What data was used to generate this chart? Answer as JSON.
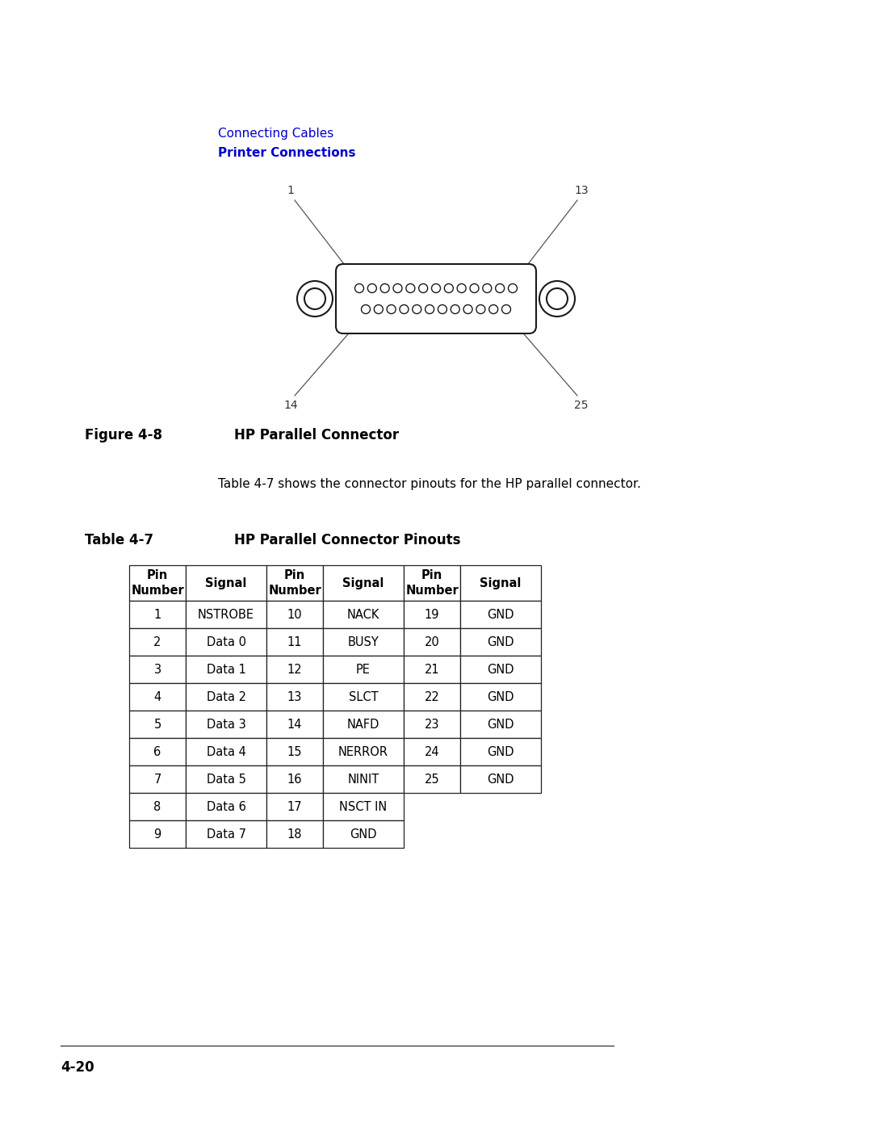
{
  "page_background": "#ffffff",
  "breadcrumb_line1": "Connecting Cables",
  "breadcrumb_line2": "Printer Connections",
  "breadcrumb_color": "#0000cc",
  "figure_label": "Figure 4-8",
  "figure_title": "HP Parallel Connector",
  "description_text": "Table 4-7 shows the connector pinouts for the HP parallel connector.",
  "table_label": "Table 4-7",
  "table_title": "HP Parallel Connector Pinouts",
  "footer_text": "4-20",
  "table_col1": [
    [
      "1",
      "NSTROBE"
    ],
    [
      "2",
      "Data 0"
    ],
    [
      "3",
      "Data 1"
    ],
    [
      "4",
      "Data 2"
    ],
    [
      "5",
      "Data 3"
    ],
    [
      "6",
      "Data 4"
    ],
    [
      "7",
      "Data 5"
    ],
    [
      "8",
      "Data 6"
    ],
    [
      "9",
      "Data 7"
    ]
  ],
  "table_col2": [
    [
      "10",
      "NACK"
    ],
    [
      "11",
      "BUSY"
    ],
    [
      "12",
      "PE"
    ],
    [
      "13",
      "SLCT"
    ],
    [
      "14",
      "NAFD"
    ],
    [
      "15",
      "NERROR"
    ],
    [
      "16",
      "NINIT"
    ],
    [
      "17",
      "NSCT IN"
    ],
    [
      "18",
      "GND"
    ]
  ],
  "table_col3": [
    [
      "19",
      "GND"
    ],
    [
      "20",
      "GND"
    ],
    [
      "21",
      "GND"
    ],
    [
      "22",
      "GND"
    ],
    [
      "23",
      "GND"
    ],
    [
      "24",
      "GND"
    ],
    [
      "25",
      "GND"
    ]
  ]
}
